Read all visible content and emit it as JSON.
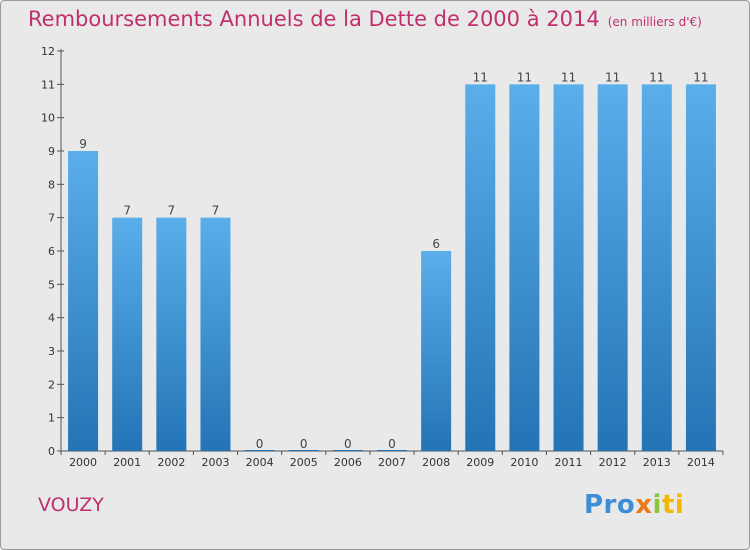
{
  "header": {
    "title": "Remboursements Annuels de la Dette de 2000 à 2014",
    "subtitle": "(en milliers d'€)"
  },
  "footer": {
    "place": "VOUZY",
    "logo_text": "Proxiti"
  },
  "colors": {
    "title": "#c0306e",
    "bar_light": "#5aaeea",
    "bar_dark": "#2374b6",
    "plot_background": "#e9e9e9"
  },
  "chart_data": {
    "type": "bar",
    "categories": [
      "2000",
      "2001",
      "2002",
      "2003",
      "2004",
      "2005",
      "2006",
      "2007",
      "2008",
      "2009",
      "2010",
      "2011",
      "2012",
      "2013",
      "2014"
    ],
    "values": [
      9,
      7,
      7,
      7,
      0,
      0,
      0,
      0,
      6,
      11,
      11,
      11,
      11,
      11,
      11
    ],
    "data_labels": [
      "9",
      "7",
      "7",
      "7",
      "0",
      "0",
      "0",
      "0",
      "6",
      "11",
      "11",
      "11",
      "11",
      "11",
      "11"
    ],
    "yticks": [
      "0",
      "1",
      "2",
      "3",
      "4",
      "5",
      "6",
      "7",
      "8",
      "9",
      "10",
      "11",
      "12"
    ],
    "ylim": [
      0,
      12
    ],
    "xlabel": "",
    "ylabel": "",
    "grid": false,
    "legend": "none"
  }
}
